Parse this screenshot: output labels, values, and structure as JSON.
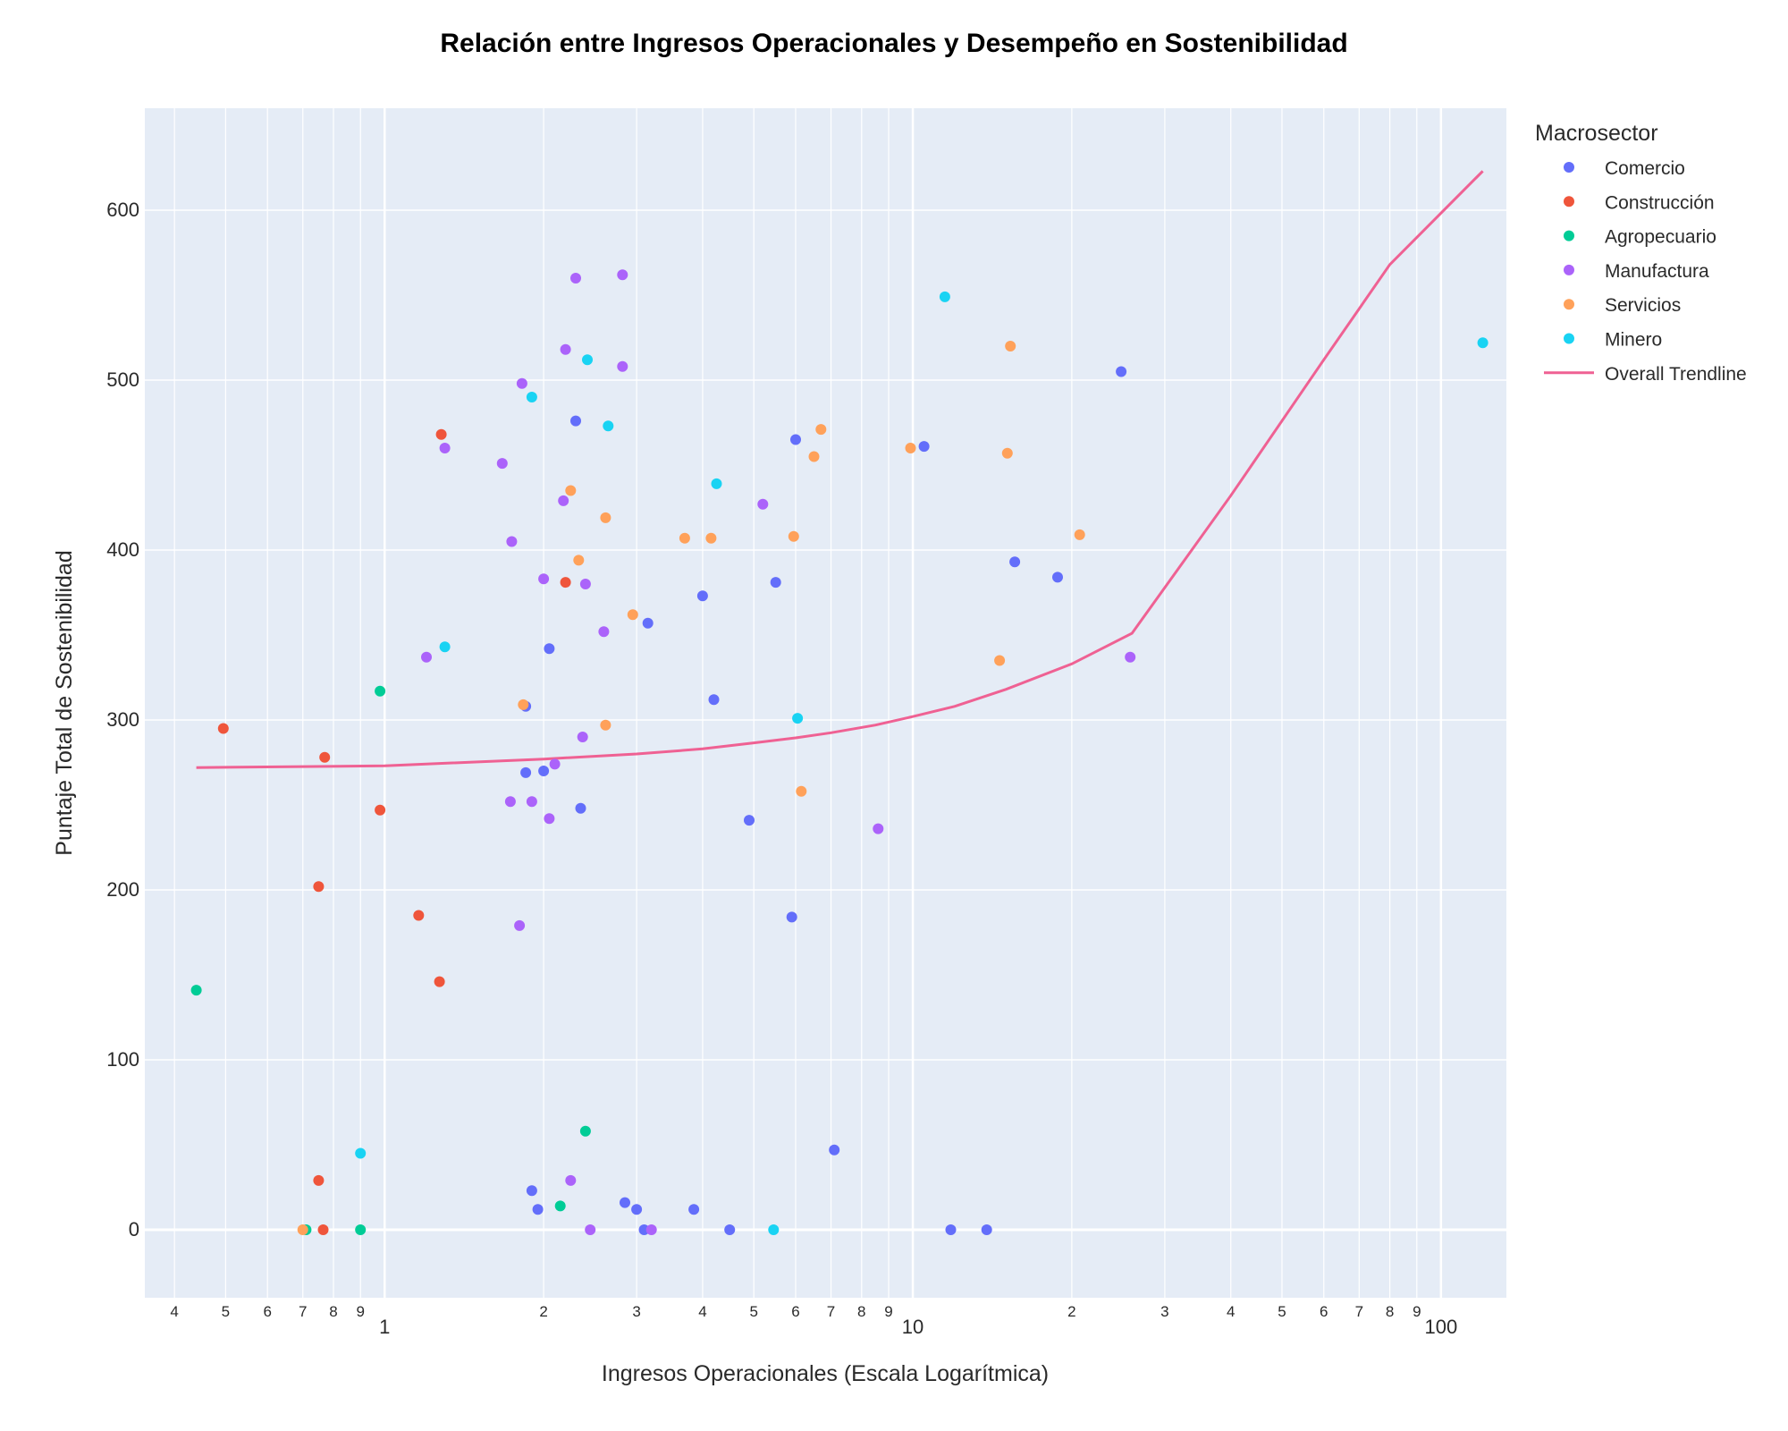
{
  "chart_data": {
    "type": "scatter",
    "title": "Relación entre Ingresos Operacionales y Desempeño en Sostenibilidad",
    "xlabel": "Ingresos Operacionales (Escala Logarítmica)",
    "ylabel": "Puntaje Total de Sostenibilidad",
    "x_scale": "log",
    "xlim": [
      0.3515,
      133
    ],
    "ylim": [
      -40,
      660
    ],
    "x_major_ticks": [
      {
        "value": 1,
        "label": "1"
      },
      {
        "value": 10,
        "label": "10"
      },
      {
        "value": 100,
        "label": "100"
      }
    ],
    "x_minor_ticks": [
      {
        "value": 0.4,
        "label": "4"
      },
      {
        "value": 0.5,
        "label": "5"
      },
      {
        "value": 0.6,
        "label": "6"
      },
      {
        "value": 0.7,
        "label": "7"
      },
      {
        "value": 0.8,
        "label": "8"
      },
      {
        "value": 0.9,
        "label": "9"
      },
      {
        "value": 2,
        "label": "2"
      },
      {
        "value": 3,
        "label": "3"
      },
      {
        "value": 4,
        "label": "4"
      },
      {
        "value": 5,
        "label": "5"
      },
      {
        "value": 6,
        "label": "6"
      },
      {
        "value": 7,
        "label": "7"
      },
      {
        "value": 8,
        "label": "8"
      },
      {
        "value": 9,
        "label": "9"
      },
      {
        "value": 20,
        "label": "2"
      },
      {
        "value": 30,
        "label": "3"
      },
      {
        "value": 40,
        "label": "4"
      },
      {
        "value": 50,
        "label": "5"
      },
      {
        "value": 60,
        "label": "6"
      },
      {
        "value": 70,
        "label": "7"
      },
      {
        "value": 80,
        "label": "8"
      },
      {
        "value": 90,
        "label": "9"
      }
    ],
    "y_ticks": [
      {
        "value": 0,
        "label": "0"
      },
      {
        "value": 100,
        "label": "100"
      },
      {
        "value": 200,
        "label": "200"
      },
      {
        "value": 300,
        "label": "300"
      },
      {
        "value": 400,
        "label": "400"
      },
      {
        "value": 500,
        "label": "500"
      },
      {
        "value": 600,
        "label": "600"
      }
    ],
    "grid": true,
    "plot_background": "#e5ecf6",
    "legend": {
      "title": "Macrosector",
      "placement": "right"
    },
    "series": [
      {
        "name": "Comercio",
        "color": "#636efa",
        "points": [
          [
            2.3,
            476
          ],
          [
            6.0,
            465
          ],
          [
            10.5,
            461
          ],
          [
            24.8,
            505
          ],
          [
            4.0,
            373
          ],
          [
            5.5,
            381
          ],
          [
            15.6,
            393
          ],
          [
            18.8,
            384
          ],
          [
            3.15,
            357
          ],
          [
            2.05,
            342
          ],
          [
            4.2,
            312
          ],
          [
            1.85,
            308
          ],
          [
            1.85,
            269
          ],
          [
            2.0,
            270
          ],
          [
            2.35,
            248
          ],
          [
            4.9,
            241
          ],
          [
            5.9,
            184
          ],
          [
            7.1,
            47
          ],
          [
            1.9,
            23
          ],
          [
            1.95,
            12
          ],
          [
            2.85,
            16
          ],
          [
            3.0,
            12
          ],
          [
            3.85,
            12
          ],
          [
            3.1,
            0
          ],
          [
            4.5,
            0
          ],
          [
            11.8,
            0
          ],
          [
            13.8,
            0
          ]
        ]
      },
      {
        "name": "Construcción",
        "color": "#ef553b",
        "points": [
          [
            1.28,
            468
          ],
          [
            2.2,
            381
          ],
          [
            0.495,
            295
          ],
          [
            0.77,
            278
          ],
          [
            0.98,
            247
          ],
          [
            0.75,
            202
          ],
          [
            1.16,
            185
          ],
          [
            1.27,
            146
          ],
          [
            0.75,
            29
          ],
          [
            0.765,
            0
          ]
        ]
      },
      {
        "name": "Agropecuario",
        "color": "#00cc96",
        "points": [
          [
            0.98,
            317
          ],
          [
            0.44,
            141
          ],
          [
            2.4,
            58
          ],
          [
            2.15,
            14
          ],
          [
            0.71,
            0
          ],
          [
            0.9,
            0
          ]
        ]
      },
      {
        "name": "Manufactura",
        "color": "#ab63fa",
        "points": [
          [
            2.3,
            560
          ],
          [
            2.82,
            562
          ],
          [
            2.2,
            518
          ],
          [
            2.82,
            508
          ],
          [
            1.82,
            498
          ],
          [
            1.3,
            460
          ],
          [
            1.67,
            451
          ],
          [
            2.18,
            429
          ],
          [
            5.2,
            427
          ],
          [
            1.74,
            405
          ],
          [
            2.0,
            383
          ],
          [
            2.4,
            380
          ],
          [
            2.6,
            352
          ],
          [
            1.2,
            337
          ],
          [
            25.8,
            337
          ],
          [
            2.37,
            290
          ],
          [
            2.1,
            274
          ],
          [
            1.73,
            252
          ],
          [
            1.9,
            252
          ],
          [
            2.05,
            242
          ],
          [
            8.6,
            236
          ],
          [
            1.8,
            179
          ],
          [
            2.25,
            29
          ],
          [
            2.45,
            0
          ],
          [
            3.2,
            0
          ]
        ]
      },
      {
        "name": "Servicios",
        "color": "#ffa15a",
        "points": [
          [
            15.3,
            520
          ],
          [
            6.7,
            471
          ],
          [
            6.5,
            455
          ],
          [
            9.9,
            460
          ],
          [
            15.1,
            457
          ],
          [
            2.25,
            435
          ],
          [
            2.62,
            419
          ],
          [
            3.7,
            407
          ],
          [
            4.15,
            407
          ],
          [
            5.95,
            408
          ],
          [
            20.7,
            409
          ],
          [
            2.33,
            394
          ],
          [
            2.95,
            362
          ],
          [
            1.83,
            309
          ],
          [
            2.62,
            297
          ],
          [
            14.6,
            335
          ],
          [
            6.15,
            258
          ],
          [
            0.7,
            0
          ]
        ]
      },
      {
        "name": "Minero",
        "color": "#19d3f3",
        "points": [
          [
            11.5,
            549
          ],
          [
            120,
            522
          ],
          [
            2.42,
            512
          ],
          [
            1.9,
            490
          ],
          [
            2.65,
            473
          ],
          [
            4.25,
            439
          ],
          [
            1.3,
            343
          ],
          [
            6.05,
            301
          ],
          [
            0.9,
            45
          ],
          [
            5.45,
            0
          ]
        ]
      }
    ],
    "trendline": {
      "name": "Overall Trendline",
      "color": "#ef6193",
      "points": [
        [
          0.44,
          272
        ],
        [
          1.0,
          273
        ],
        [
          2.0,
          277
        ],
        [
          3.0,
          280
        ],
        [
          4.0,
          283
        ],
        [
          5.0,
          286.5
        ],
        [
          6.0,
          289.5
        ],
        [
          7.0,
          292.5
        ],
        [
          8.5,
          297
        ],
        [
          10.0,
          302
        ],
        [
          12.0,
          308
        ],
        [
          15.0,
          318
        ],
        [
          20.0,
          333
        ],
        [
          26.0,
          351
        ],
        [
          40.0,
          432
        ],
        [
          60.0,
          512
        ],
        [
          80.0,
          568
        ],
        [
          120.0,
          623
        ]
      ]
    }
  }
}
